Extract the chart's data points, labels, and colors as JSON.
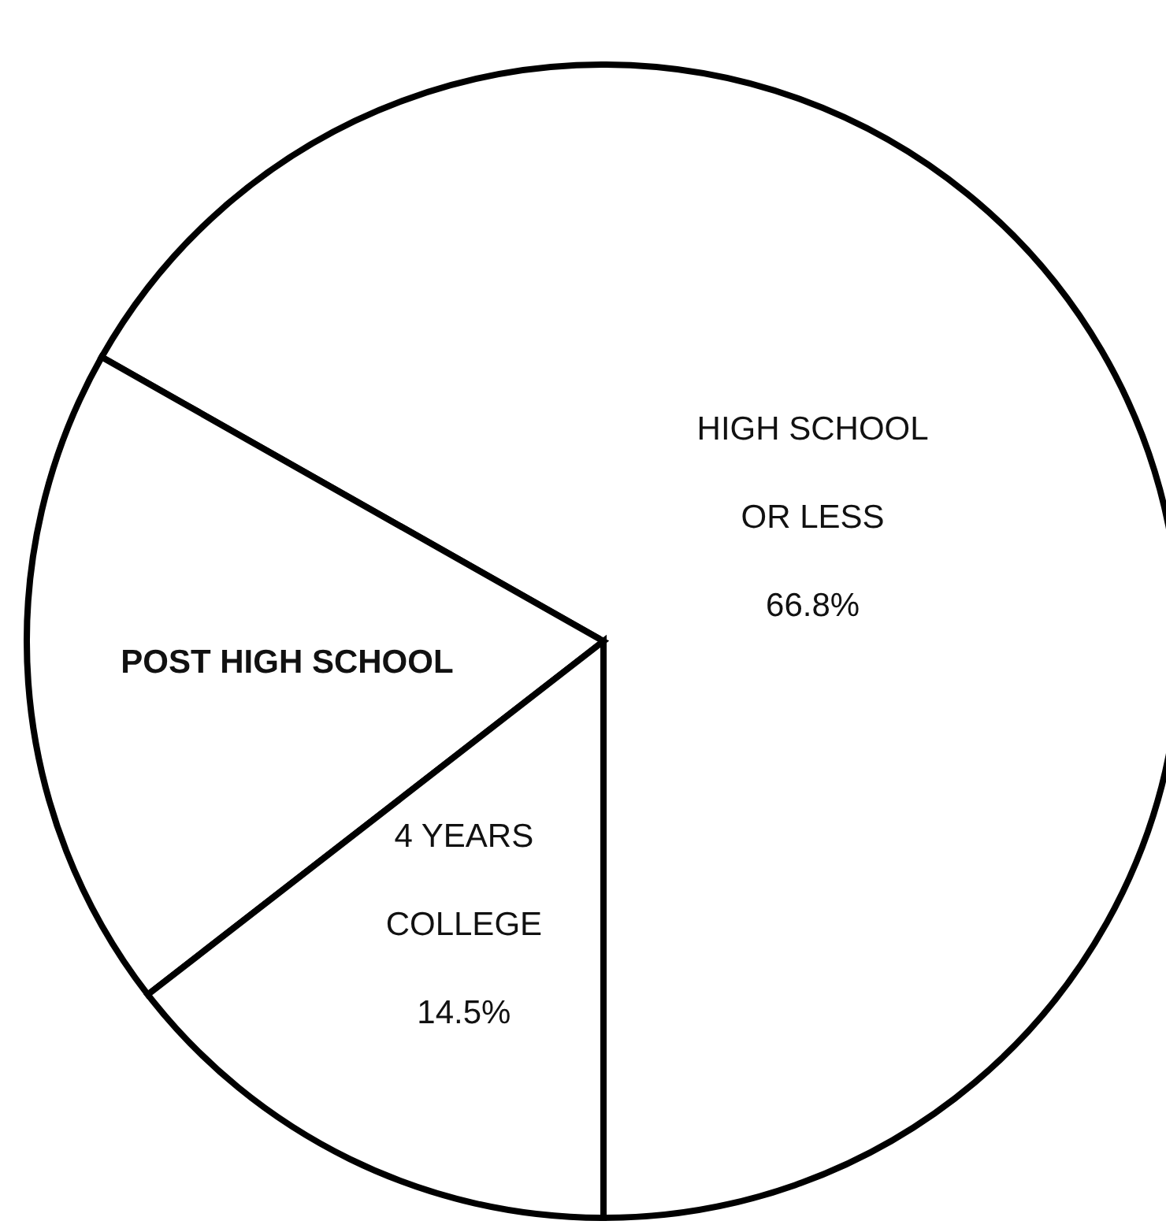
{
  "chart_data": {
    "type": "pie",
    "categories": [
      "HIGH SCHOOL OR LESS",
      "POST HIGH SCHOOL",
      "4 YEARS COLLEGE"
    ],
    "values": [
      66.8,
      18.7,
      14.5
    ],
    "value_labels": [
      "66.8%",
      null,
      "14.5%"
    ],
    "colors": [
      "#ffffff",
      "#ffffff",
      "#ffffff"
    ]
  }
}
